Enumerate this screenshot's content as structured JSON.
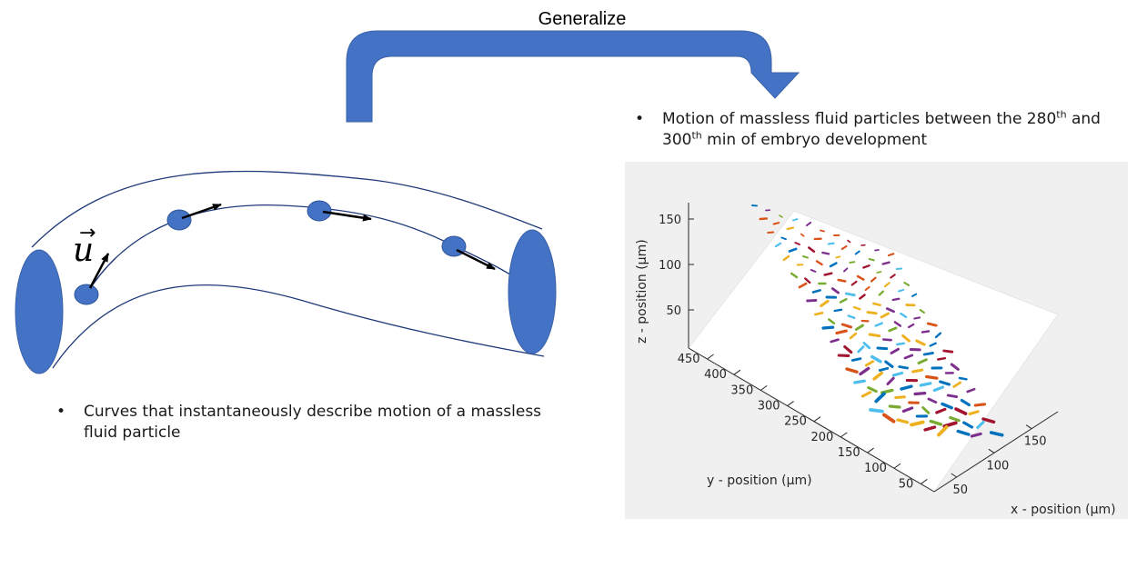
{
  "transition": {
    "label": "Generalize"
  },
  "left_panel": {
    "velocity_symbol": "u",
    "velocity_vector_mark": "→",
    "bullet": "Curves that instantaneously describe motion of a massless fluid particle",
    "colors": {
      "tube_line": "#1f3a7a",
      "ellipse_fill": "#4472c4",
      "arrow": "#000000"
    }
  },
  "right_panel": {
    "bullet_part1": "Motion of massless fluid particles between the 280",
    "sup1": "th",
    "bullet_part2": " and 300",
    "sup2": "th",
    "bullet_part3": " min of embryo development",
    "bullet_marker": "•"
  },
  "chart_data": {
    "type": "scatter",
    "dimensions": "3d",
    "xlabel": "x - position (μm)",
    "ylabel": "y - position (μm)",
    "zlabel": "z - position (μm)",
    "x_ticks": [
      "50",
      "100",
      "150"
    ],
    "y_ticks": [
      "50",
      "100",
      "150",
      "200",
      "250",
      "300",
      "350",
      "400",
      "450"
    ],
    "z_ticks": [
      "50",
      "100",
      "150"
    ],
    "background": "#f0f0f0",
    "series_colors": [
      "#0072bd",
      "#d95319",
      "#edb120",
      "#7e2f8e",
      "#77ac30",
      "#4dbeee",
      "#a2142f"
    ]
  }
}
